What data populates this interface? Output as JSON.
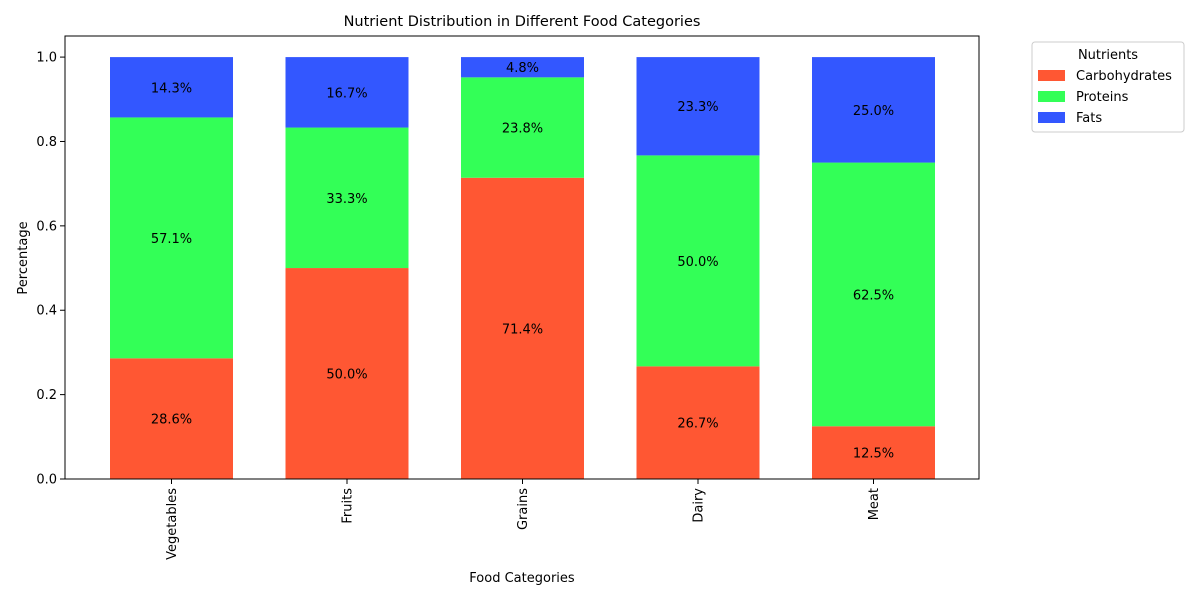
{
  "chart_data": {
    "type": "bar",
    "stacked": true,
    "title": "Nutrient Distribution in Different Food Categories",
    "xlabel": "Food Categories",
    "ylabel": "Percentage",
    "categories": [
      "Vegetables",
      "Fruits",
      "Grains",
      "Dairy",
      "Meat"
    ],
    "series": [
      {
        "name": "Carbohydrates",
        "color": "#FF5733",
        "values": [
          0.286,
          0.5,
          0.714,
          0.267,
          0.125
        ],
        "labels": [
          "28.6%",
          "50.0%",
          "71.4%",
          "26.7%",
          "12.5%"
        ]
      },
      {
        "name": "Proteins",
        "color": "#33FF57",
        "values": [
          0.571,
          0.333,
          0.238,
          0.5,
          0.625
        ],
        "labels": [
          "57.1%",
          "33.3%",
          "23.8%",
          "50.0%",
          "62.5%"
        ]
      },
      {
        "name": "Fats",
        "color": "#3357FF",
        "values": [
          0.143,
          0.167,
          0.048,
          0.233,
          0.25
        ],
        "labels": [
          "14.3%",
          "16.7%",
          "4.8%",
          "23.3%",
          "25.0%"
        ]
      }
    ],
    "ylim": [
      0,
      1.05
    ],
    "yticks": [
      0.0,
      0.2,
      0.4,
      0.6,
      0.8,
      1.0
    ],
    "ytick_labels": [
      "0.0",
      "0.2",
      "0.4",
      "0.6",
      "0.8",
      "1.0"
    ],
    "xtick_rotation": 90,
    "grid": false,
    "legend": {
      "title": "Nutrients",
      "placement": "outside-upper-right"
    }
  }
}
